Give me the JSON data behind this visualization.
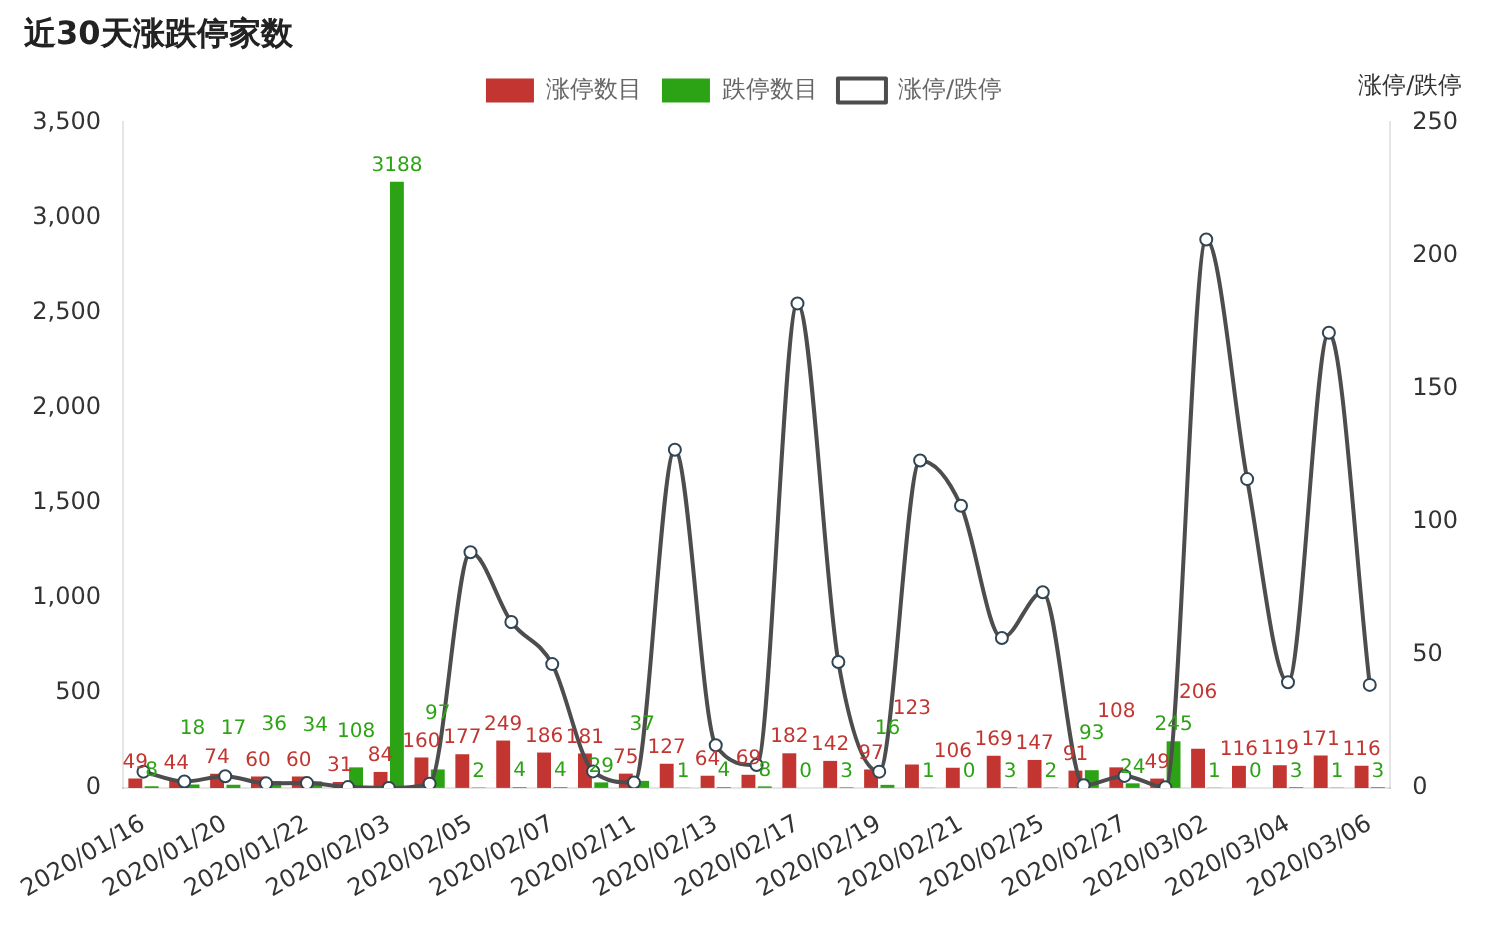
{
  "chart_data": {
    "type": "bar",
    "title": "近30天涨跌停家数",
    "y2label": "涨停/跌停",
    "categories": [
      "2020/01/16",
      null,
      "2020/01/20",
      null,
      "2020/01/22",
      null,
      "2020/02/03",
      null,
      "2020/02/05",
      null,
      "2020/02/07",
      null,
      "2020/02/11",
      null,
      "2020/02/13",
      null,
      "2020/02/17",
      null,
      "2020/02/19",
      null,
      "2020/02/21",
      null,
      "2020/02/25",
      null,
      "2020/02/27",
      null,
      "2020/03/02",
      null,
      "2020/03/04",
      null,
      "2020/03/06"
    ],
    "series": [
      {
        "name": "涨停数目",
        "color": "#c23531",
        "values": [
          49,
          44,
          74,
          60,
          60,
          31,
          84,
          160,
          177,
          249,
          186,
          181,
          75,
          127,
          64,
          69,
          182,
          142,
          97,
          123,
          106,
          169,
          147,
          91,
          108,
          49,
          206,
          116,
          119,
          171,
          116
        ],
        "value_labels": [
          "49",
          "44",
          "74",
          "60",
          "60",
          "31",
          "84",
          "160",
          "177",
          "249",
          "186",
          "181",
          "75",
          "127",
          "64",
          "69",
          "182",
          "142",
          "97",
          "123",
          "106",
          "169",
          "147",
          "91",
          "108",
          "49",
          "206",
          "116",
          "119",
          "171",
          "116"
        ]
      },
      {
        "name": "跌停数目",
        "color": "#2ca314",
        "values": [
          8,
          18,
          17,
          36,
          34,
          108,
          3188,
          97,
          2,
          4,
          4,
          29,
          37,
          1,
          4,
          8,
          0,
          3,
          16,
          1,
          0,
          3,
          2,
          93,
          24,
          245,
          1,
          0,
          3,
          1,
          3
        ],
        "value_labels": [
          "8",
          "18",
          "17",
          "36",
          "34",
          "108",
          "3188",
          "97",
          "2",
          "4",
          "4",
          "29",
          "37",
          "1",
          "4",
          "8",
          "0",
          "3",
          "16",
          "1",
          "0",
          "3",
          "2",
          "93",
          "24",
          "245",
          "1",
          "0",
          "3",
          "1",
          "3"
        ]
      },
      {
        "name": "涨停/跌停",
        "type": "line",
        "axis": "y2",
        "color": "#4d4d4d",
        "marker": "circle",
        "values": [
          6.1,
          2.4,
          4.4,
          1.7,
          1.8,
          0.3,
          0.0,
          1.6,
          88.5,
          62.3,
          46.5,
          6.2,
          2.0,
          127,
          16,
          8.6,
          182,
          47.3,
          6.1,
          123,
          106,
          56.3,
          73.5,
          1.0,
          4.5,
          0.2,
          206,
          116,
          39.7,
          171,
          38.7
        ]
      }
    ],
    "ylim": [
      0,
      3500
    ],
    "yticks": [
      {
        "value": 0,
        "label": "0"
      },
      {
        "value": 500,
        "label": "500"
      },
      {
        "value": 1000,
        "label": "1,000"
      },
      {
        "value": 1500,
        "label": "1,500"
      },
      {
        "value": 2000,
        "label": "2,000"
      },
      {
        "value": 2500,
        "label": "2,500"
      },
      {
        "value": 3000,
        "label": "3,000"
      },
      {
        "value": 3500,
        "label": "3,500"
      }
    ],
    "y2lim": [
      0,
      250
    ],
    "y2ticks": [
      0,
      50,
      100,
      150,
      200,
      250
    ],
    "legend": "top"
  }
}
